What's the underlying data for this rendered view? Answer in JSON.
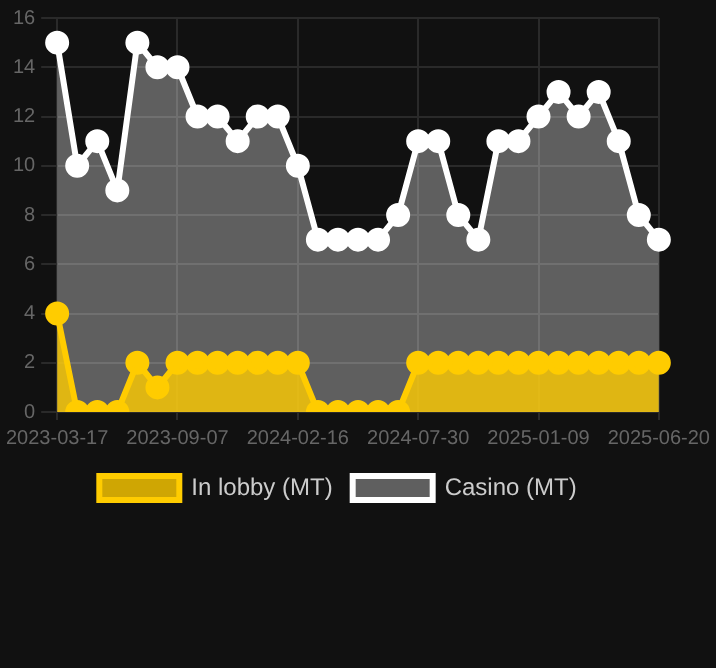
{
  "chart_data": {
    "type": "area",
    "categories": [
      "2023-03-17",
      null,
      null,
      null,
      null,
      null,
      "2023-09-07",
      null,
      null,
      null,
      null,
      null,
      "2024-02-16",
      null,
      null,
      null,
      null,
      null,
      "2024-07-30",
      null,
      null,
      null,
      null,
      null,
      "2025-01-09",
      null,
      null,
      null,
      null,
      null,
      "2025-06-20"
    ],
    "series": [
      {
        "name": "In lobby (MT)",
        "color": "#ffcc00",
        "values": [
          4,
          0,
          0,
          0,
          2,
          1,
          2,
          2,
          2,
          2,
          2,
          2,
          2,
          0,
          0,
          0,
          0,
          0,
          2,
          2,
          2,
          2,
          2,
          2,
          2,
          2,
          2,
          2,
          2,
          2,
          2
        ]
      },
      {
        "name": "Casino (MT)",
        "color": "#ffffff",
        "values": [
          15,
          10,
          11,
          9,
          15,
          14,
          14,
          12,
          12,
          11,
          12,
          12,
          10,
          7,
          7,
          7,
          7,
          8,
          11,
          11,
          8,
          7,
          11,
          11,
          12,
          13,
          12,
          13,
          11,
          8,
          7
        ]
      }
    ],
    "ylim": [
      0,
      16
    ],
    "yticks": [
      0,
      2,
      4,
      6,
      8,
      10,
      12,
      14,
      16
    ],
    "grid": true,
    "legend": "bottom",
    "marker": "circle"
  }
}
